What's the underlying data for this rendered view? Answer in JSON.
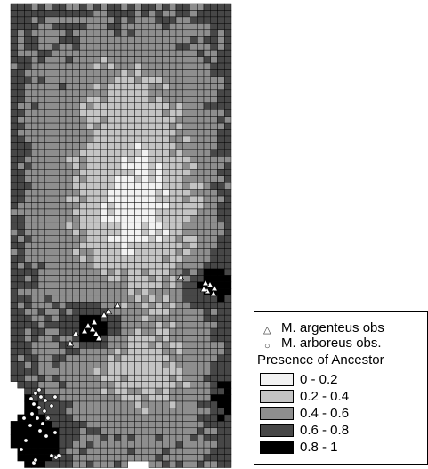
{
  "map": {
    "grid": {
      "cols": 32,
      "rows": 70
    },
    "class_colors": [
      "#f2f2f2",
      "#c4c4c4",
      "#8e8e8e",
      "#474747",
      "#000000"
    ],
    "argenteus_color": "#ffffff",
    "arboreus_color": "#ffffff"
  },
  "legend": {
    "argenteus": {
      "label": "M. argenteus obs",
      "icon": "triangle-icon"
    },
    "arboreus": {
      "label": "M. arboreus obs.",
      "icon": "circle-icon"
    },
    "title": "Presence of Ancestor",
    "classes": [
      "0 - 0.2",
      "0.2 - 0.4",
      "0.4 - 0.6",
      "0.6 - 0.8",
      "0.8 - 1"
    ]
  }
}
